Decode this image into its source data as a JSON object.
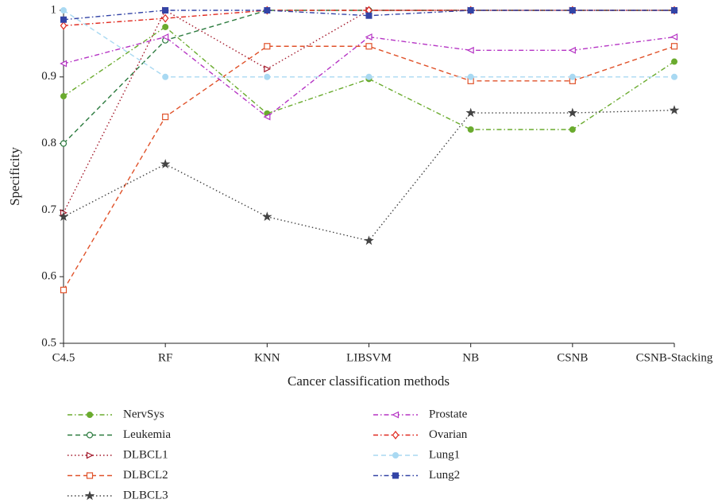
{
  "chart_data": {
    "type": "line",
    "x_label": "Cancer classification methods",
    "y_label": "Specificity",
    "categories": [
      "C4.5",
      "RF",
      "KNN",
      "LIBSVM",
      "NB",
      "CSNB",
      "CSNB-Stacking"
    ],
    "ylim": [
      0.5,
      1
    ],
    "yticks": [
      0.5,
      0.6,
      0.7,
      0.8,
      0.9,
      1
    ],
    "series": [
      {
        "name": "NervSys",
        "color": "#6aab2e",
        "dash": "dashdot",
        "marker": "circle-filled",
        "values": [
          0.871,
          0.975,
          0.845,
          0.897,
          0.821,
          0.821,
          0.923
        ]
      },
      {
        "name": "Leukemia",
        "color": "#2b7a3e",
        "dash": "dashed",
        "marker": "circle-open",
        "values": [
          0.8,
          0.955,
          1,
          1,
          1,
          1,
          1
        ]
      },
      {
        "name": "DLBCL1",
        "color": "#a3182a",
        "dash": "dotted",
        "marker": "triangle-right",
        "values": [
          0.696,
          1,
          0.912,
          1,
          1,
          1,
          1
        ]
      },
      {
        "name": "DLBCL2",
        "color": "#e0522a",
        "dash": "dashed",
        "marker": "square-open",
        "values": [
          0.58,
          0.84,
          0.946,
          0.946,
          0.894,
          0.894,
          0.946
        ]
      },
      {
        "name": "DLBCL3",
        "color": "#444444",
        "dash": "dotted",
        "marker": "star",
        "values": [
          0.69,
          0.769,
          0.69,
          0.654,
          0.846,
          0.846,
          0.85
        ]
      },
      {
        "name": "Prostate",
        "color": "#b534c4",
        "dash": "dashdot",
        "marker": "triangle-left",
        "values": [
          0.92,
          0.96,
          0.84,
          0.96,
          0.94,
          0.94,
          0.96
        ]
      },
      {
        "name": "Ovarian",
        "color": "#e0281e",
        "dash": "dashdot",
        "marker": "diamond-open",
        "values": [
          0.977,
          0.988,
          1,
          1,
          1,
          1,
          1
        ]
      },
      {
        "name": "Lung1",
        "color": "#a9d9f2",
        "dash": "dashed",
        "marker": "circle-filled",
        "values": [
          1,
          0.9,
          0.9,
          0.9,
          0.9,
          0.9,
          0.9
        ]
      },
      {
        "name": "Lung2",
        "color": "#3344a6",
        "dash": "dashdot",
        "marker": "square-filled",
        "values": [
          0.986,
          1,
          1,
          0.992,
          1,
          1,
          1
        ]
      }
    ]
  }
}
